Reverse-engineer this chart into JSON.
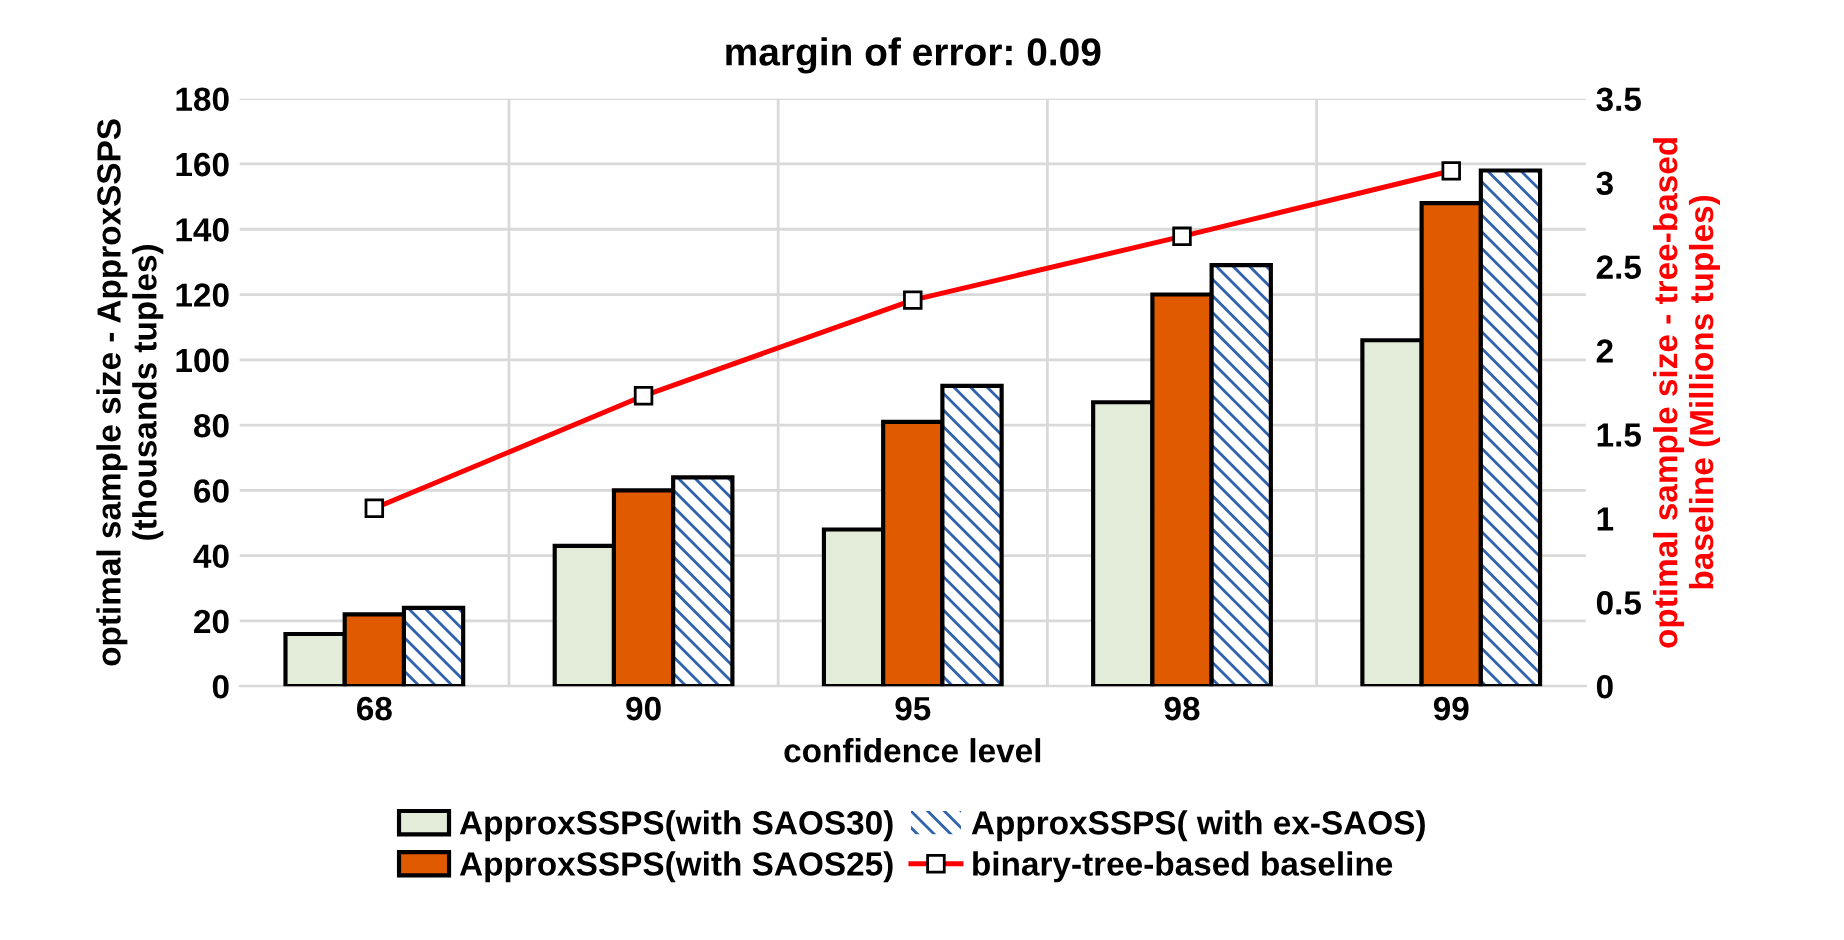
{
  "chart_data": {
    "type": "bar",
    "title": "margin of error: 0.09",
    "xlabel": "confidence level",
    "ylabel": "optimal sample size - ApproxSSPS\n(thousands tuples)",
    "y2label": "optimal sample size - tree-based\nbaseline (Millions tuples)",
    "categories": [
      "68",
      "90",
      "95",
      "98",
      "99"
    ],
    "series": [
      {
        "name": "ApproxSSPS(with SAOS30)",
        "color": "#e2ecd9",
        "values": [
          16,
          43,
          48,
          87,
          106
        ]
      },
      {
        "name": "ApproxSSPS(with SAOS25)",
        "color": "#e05a00",
        "values": [
          22,
          60,
          81,
          120,
          148
        ]
      },
      {
        "name": "ApproxSSPS( with ex-SAOS)",
        "color": "#2f62ad",
        "values": [
          24,
          64,
          92,
          129,
          158
        ]
      },
      {
        "name": "binary-tree-based baseline",
        "type": "line",
        "axis": "y2",
        "color": "#ff0000",
        "marker": "square",
        "values": [
          1.06,
          1.73,
          2.3,
          2.68,
          3.07
        ]
      }
    ],
    "ylim": [
      0,
      180
    ],
    "yticks": [
      0,
      20,
      40,
      60,
      80,
      100,
      120,
      140,
      160,
      180
    ],
    "y2lim": [
      0,
      3.5
    ],
    "y2ticks": [
      0,
      0.5,
      1,
      1.5,
      2,
      2.5,
      3,
      3.5
    ],
    "grid": true,
    "legend": "bottom"
  }
}
